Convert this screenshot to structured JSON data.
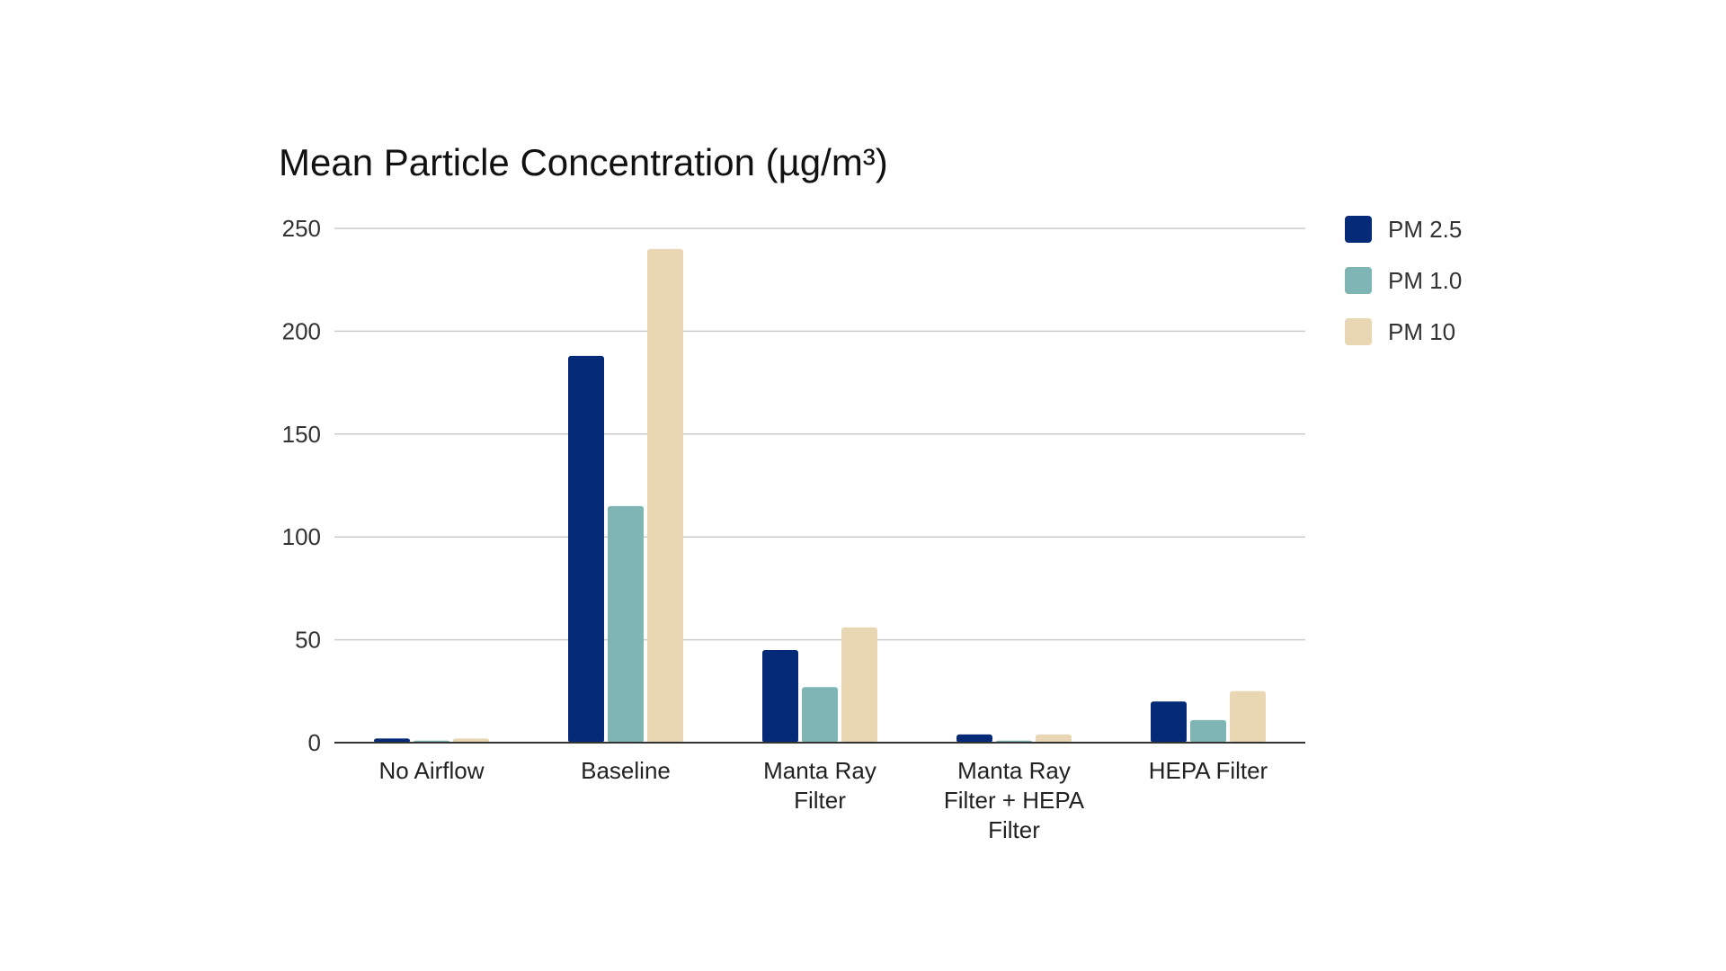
{
  "chart_data": {
    "type": "bar",
    "title": "Mean Particle Concentration (µg/m³)",
    "xlabel": "",
    "ylabel": "",
    "ylim": [
      0,
      250
    ],
    "yticks": [
      "0",
      "50",
      "100",
      "150",
      "200",
      "250"
    ],
    "grid": true,
    "legend_position": "right",
    "categories": [
      [
        "No Airflow"
      ],
      [
        "Baseline"
      ],
      [
        "Manta Ray",
        "Filter"
      ],
      [
        "Manta Ray",
        "Filter + HEPA",
        "Filter"
      ],
      [
        "HEPA Filter"
      ]
    ],
    "series": [
      {
        "name": "PM 2.5",
        "color": "#052a78",
        "values": [
          2,
          188,
          45,
          4,
          20
        ]
      },
      {
        "name": "PM 1.0",
        "color": "#7fb5b5",
        "values": [
          1,
          115,
          27,
          1,
          11
        ]
      },
      {
        "name": "PM 10",
        "color": "#e9d6b3",
        "values": [
          2,
          240,
          56,
          4,
          25
        ]
      }
    ]
  }
}
